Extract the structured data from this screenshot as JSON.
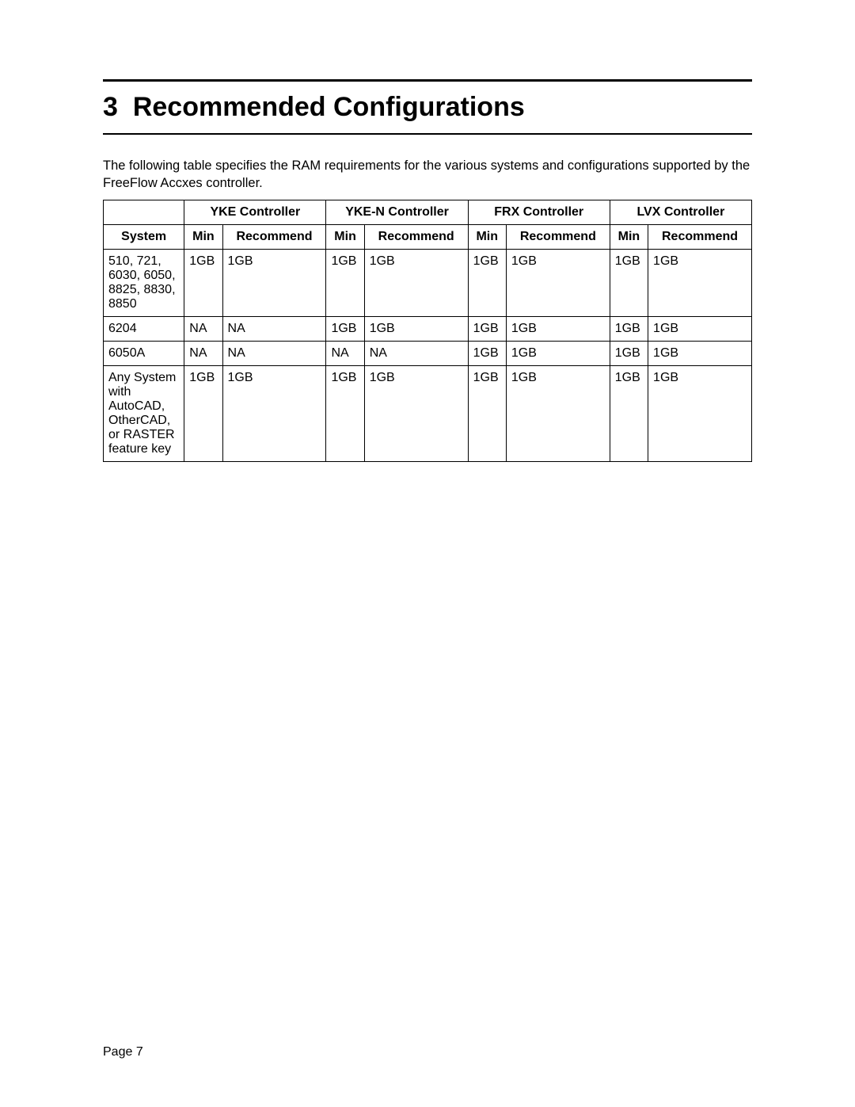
{
  "heading_number": "3",
  "heading_title": "Recommended Configurations",
  "intro_text": "The following table specifies the RAM requirements for the various systems and configurations supported by the FreeFlow Accxes controller.",
  "footer_text": "Page 7",
  "table": {
    "type": "table",
    "font_family": "Arial",
    "font_size_pt": 12,
    "border_color": "#000000",
    "background_color": "#ffffff",
    "text_color": "#000000",
    "column_widths_pct": [
      12.5,
      5.9,
      16,
      5.9,
      16,
      5.9,
      16,
      5.9,
      16
    ],
    "header_row1": {
      "blank": "",
      "groups": [
        {
          "label": "YKE Controller",
          "span": 2
        },
        {
          "label": "YKE-N Controller",
          "span": 2
        },
        {
          "label": "FRX Controller",
          "span": 2
        },
        {
          "label": "LVX Controller",
          "span": 2
        }
      ]
    },
    "header_row2": [
      "System",
      "Min",
      "Recommend",
      "Min",
      "Recommend",
      "Min",
      "Recommend",
      "Min",
      "Recommend"
    ],
    "rows": [
      [
        "510, 721, 6030, 6050, 8825, 8830, 8850",
        "1GB",
        "1GB",
        "1GB",
        "1GB",
        "1GB",
        "1GB",
        "1GB",
        "1GB"
      ],
      [
        "6204",
        "NA",
        "NA",
        "1GB",
        "1GB",
        "1GB",
        "1GB",
        "1GB",
        "1GB"
      ],
      [
        "6050A",
        "NA",
        "NA",
        "NA",
        "NA",
        "1GB",
        "1GB",
        "1GB",
        "1GB"
      ],
      [
        "Any System with AutoCAD, OtherCAD, or RASTER feature key",
        "1GB",
        "1GB",
        "1GB",
        "1GB",
        "1GB",
        "1GB",
        "1GB",
        "1GB"
      ]
    ]
  }
}
